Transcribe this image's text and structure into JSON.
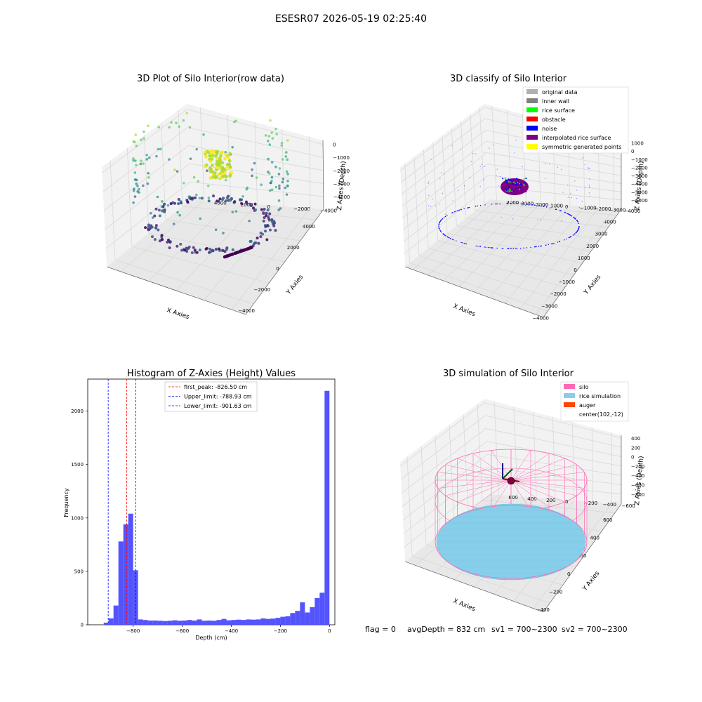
{
  "figure": {
    "suptitle": "ESESR07 2026-05-19 02:25:40",
    "footer": {
      "flag": "flag = 0",
      "avg": "avgDepth = 832 cm",
      "sv1": "sv1 = 700~2300",
      "sv2": "sv2 = 700~2300"
    }
  },
  "colors": {
    "silo": "#ff69b4",
    "rice": "#87ceeb",
    "auger": "#ff4500",
    "hist_bar": "#4b4bff",
    "first_peak_line": "#ff0000",
    "limit_line": "#0000ff",
    "noise": "#0000ff",
    "rice_surface": "#00ff00",
    "obstacle": "#ff0000",
    "interpolated": "#800080",
    "symmetric": "#ffff00"
  },
  "chart_data": [
    {
      "type": "scatter",
      "subtype": "3d",
      "title": "3D Plot of Silo Interior(row data)",
      "xlabel": "X Axies",
      "ylabel": "Y Axies",
      "zlabel": "Z Axies (Depth)",
      "xticks": [
        "−4000",
        "−2000",
        "0",
        "2000",
        "4000"
      ],
      "yticks": [
        "4000",
        "2000",
        "0",
        "−2000",
        "−4000"
      ],
      "zticks": [
        "0",
        "−1000",
        "−2000",
        "−3000",
        "−4000"
      ],
      "colormap": "viridis",
      "xlim": [
        -4500,
        4500
      ],
      "ylim": [
        -4500,
        4500
      ],
      "zlim": [
        -4500,
        200
      ]
    },
    {
      "type": "scatter",
      "subtype": "3d",
      "title": "3D classify of Silo Interior",
      "xlabel": "X Axies",
      "ylabel": "Y Axies",
      "zlabel": "Z Axies (Depth)",
      "xticks": [
        "−4000",
        "−3000",
        "−2000",
        "−1000",
        "0",
        "1000",
        "2000",
        "3000",
        "4000"
      ],
      "yticks": [
        "4000",
        "3000",
        "2000",
        "1000",
        "0",
        "−1000",
        "−2000",
        "−3000",
        "−4000"
      ],
      "zticks": [
        "1000",
        "0",
        "−1000",
        "−2000",
        "−3000",
        "−4000",
        "−5000",
        "−6000"
      ],
      "legend": [
        "original data",
        "inner wall",
        "rice surface",
        "obstacle",
        "noise",
        "interpolated rice surface",
        "symmetric generated points"
      ],
      "legend_colors": [
        "#b0b0b0",
        "#808080",
        "#00ff00",
        "#ff0000",
        "#0000ff",
        "#800080",
        "#ffff00"
      ],
      "legend_position": "top-right"
    },
    {
      "type": "bar",
      "subtype": "histogram",
      "title": "Histogram of Z-Axies (Height) Values",
      "xlabel": "Depth (cm)",
      "ylabel": "Frequency",
      "xlim": [
        -985,
        22
      ],
      "ylim": [
        0,
        2300
      ],
      "xticks": [
        "−800",
        "−600",
        "−400",
        "−200",
        "0"
      ],
      "yticks": [
        "0",
        "500",
        "1000",
        "1500",
        "2000"
      ],
      "bins": [
        [
          -920,
          -900,
          20
        ],
        [
          -900,
          -880,
          60
        ],
        [
          -880,
          -860,
          180
        ],
        [
          -860,
          -840,
          780
        ],
        [
          -840,
          -820,
          940
        ],
        [
          -820,
          -800,
          1040
        ],
        [
          -800,
          -780,
          510
        ],
        [
          -780,
          -760,
          50
        ],
        [
          -760,
          -740,
          45
        ],
        [
          -740,
          -720,
          40
        ],
        [
          -720,
          -700,
          40
        ],
        [
          -700,
          -680,
          38
        ],
        [
          -680,
          -660,
          35
        ],
        [
          -660,
          -640,
          38
        ],
        [
          -640,
          -620,
          42
        ],
        [
          -620,
          -600,
          38
        ],
        [
          -600,
          -580,
          40
        ],
        [
          -580,
          -560,
          45
        ],
        [
          -560,
          -540,
          40
        ],
        [
          -540,
          -520,
          50
        ],
        [
          -520,
          -500,
          38
        ],
        [
          -500,
          -480,
          40
        ],
        [
          -480,
          -460,
          38
        ],
        [
          -460,
          -440,
          45
        ],
        [
          -440,
          -420,
          55
        ],
        [
          -420,
          -400,
          42
        ],
        [
          -400,
          -380,
          45
        ],
        [
          -380,
          -360,
          48
        ],
        [
          -360,
          -340,
          45
        ],
        [
          -340,
          -320,
          50
        ],
        [
          -320,
          -300,
          48
        ],
        [
          -300,
          -280,
          50
        ],
        [
          -280,
          -260,
          60
        ],
        [
          -260,
          -240,
          55
        ],
        [
          -240,
          -220,
          58
        ],
        [
          -220,
          -200,
          65
        ],
        [
          -200,
          -180,
          75
        ],
        [
          -180,
          -160,
          80
        ],
        [
          -160,
          -140,
          110
        ],
        [
          -140,
          -120,
          130
        ],
        [
          -120,
          -100,
          210
        ],
        [
          -100,
          -80,
          115
        ],
        [
          -80,
          -60,
          165
        ],
        [
          -60,
          -40,
          250
        ],
        [
          -40,
          -20,
          300
        ],
        [
          -20,
          0,
          2190
        ]
      ],
      "lines": [
        {
          "label": "first_peak: -826.50 cm",
          "x": -826.5,
          "color": "#ff0000"
        },
        {
          "label": "Upper_limit: -788.93 cm",
          "x": -788.93,
          "color": "#0000ff"
        },
        {
          "label": "Lower_limit: -901.63 cm",
          "x": -901.63,
          "color": "#0000ff"
        }
      ],
      "legend_position": "top-center"
    },
    {
      "type": "scatter",
      "subtype": "3d-surface",
      "title": "3D simulation of Silo Interior",
      "xlabel": "X Axies",
      "ylabel": "Y Axies",
      "zlabel": "Z Axies (Depth)",
      "xticks": [
        "−400",
        "−200",
        "0",
        "200",
        "400",
        "600"
      ],
      "yticks": [
        "600",
        "400",
        "200",
        "0",
        "−200",
        "−400",
        "−600"
      ],
      "zticks": [
        "400",
        "200",
        "0",
        "−200",
        "−400",
        "−600",
        "−800"
      ],
      "legend": [
        "silo",
        "rice simulation",
        "auger",
        "center(102,-12)"
      ],
      "legend_colors": [
        "#ff69b4",
        "#87ceeb",
        "#ff4500",
        ""
      ],
      "legend_position": "top-right"
    }
  ]
}
